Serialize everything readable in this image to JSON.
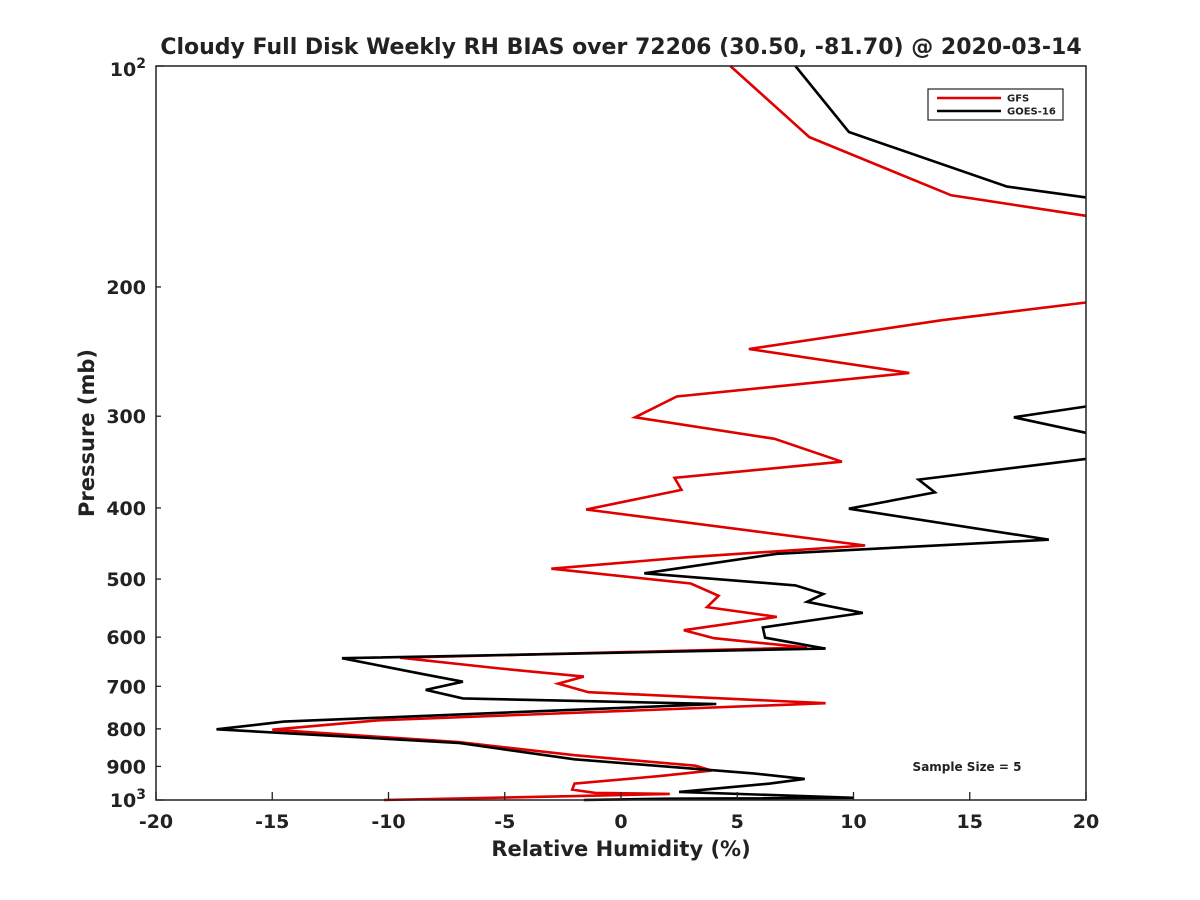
{
  "chart_data": {
    "type": "line",
    "title": "Cloudy Full Disk Weekly RH BIAS over 72206 (30.50, -81.70) @ 2020-03-14",
    "xlabel": "Relative Humidity (%)",
    "ylabel": "Pressure (mb)",
    "xlim": [
      -20,
      20
    ],
    "ylim": [
      100,
      1000
    ],
    "yscale": "log",
    "y_reversed": true,
    "xticks": [
      -20,
      -15,
      -10,
      -5,
      0,
      5,
      10,
      15,
      20
    ],
    "xtick_labels": [
      "-20",
      "-15",
      "-10",
      "-5",
      "0",
      "5",
      "10",
      "15",
      "20"
    ],
    "ytick_labels": {
      "top_base": "10",
      "top_exp": "2",
      "bottom_base": "10",
      "bottom_exp": "3",
      "mid": [
        {
          "p": 200,
          "label": "200"
        },
        {
          "p": 300,
          "label": "300"
        },
        {
          "p": 400,
          "label": "400"
        },
        {
          "p": 500,
          "label": "500"
        },
        {
          "p": 600,
          "label": "600"
        },
        {
          "p": 700,
          "label": "700"
        },
        {
          "p": 800,
          "label": "800"
        },
        {
          "p": 900,
          "label": "900"
        }
      ]
    },
    "legend_position": "top-right",
    "annotation": "Sample Size = 5",
    "series": [
      {
        "name": "GFS",
        "color": "#e00000",
        "points": [
          [
            4.7,
            100
          ],
          [
            8.1,
            125
          ],
          [
            14.2,
            150
          ],
          [
            20,
            160
          ],
          null,
          [
            20,
            210
          ],
          [
            13.8,
            222
          ],
          [
            5.5,
            243
          ],
          [
            12.4,
            262
          ],
          [
            2.4,
            282
          ],
          [
            0.6,
            301
          ],
          [
            6.6,
            322
          ],
          [
            9.5,
            346
          ],
          [
            2.3,
            364
          ],
          [
            2.6,
            378
          ],
          [
            -1.5,
            402
          ],
          [
            10.5,
            450
          ],
          [
            2.8,
            467
          ],
          [
            -3.0,
            484
          ],
          [
            3.0,
            507
          ],
          [
            4.2,
            527
          ],
          [
            3.7,
            546
          ],
          [
            6.7,
            563
          ],
          [
            2.7,
            587
          ],
          [
            4.0,
            602
          ],
          [
            8.0,
            620
          ],
          [
            -9.5,
            640
          ],
          [
            -5.2,
            662
          ],
          [
            -1.6,
            679
          ],
          [
            -2.7,
            694
          ],
          [
            -1.4,
            713
          ],
          [
            8.8,
            738
          ],
          [
            -10.5,
            779
          ],
          [
            -15.0,
            802
          ],
          [
            -7.0,
            834
          ],
          [
            -2.0,
            869
          ],
          [
            3.2,
            898
          ],
          [
            3.9,
            912
          ],
          [
            1.6,
            928
          ],
          [
            -2.0,
            950
          ],
          [
            -2.1,
            968
          ],
          [
            -1.1,
            978
          ],
          [
            2.1,
            981
          ],
          [
            -2.2,
            988
          ],
          [
            -10.2,
            1000
          ]
        ]
      },
      {
        "name": "GOES-16",
        "color": "#000000",
        "points": [
          [
            7.5,
            100
          ],
          [
            9.8,
            123
          ],
          [
            16.6,
            146
          ],
          [
            20,
            151
          ],
          null,
          [
            20,
            291
          ],
          [
            16.9,
            301
          ],
          [
            20,
            316
          ],
          null,
          [
            20,
            343
          ],
          [
            12.8,
            366
          ],
          [
            13.5,
            381
          ],
          [
            9.8,
            401
          ],
          [
            18.4,
            442
          ],
          [
            6.7,
            462
          ],
          [
            1.0,
            491
          ],
          [
            7.5,
            510
          ],
          [
            8.7,
            524
          ],
          [
            8.0,
            537
          ],
          [
            10.4,
            556
          ],
          [
            6.1,
            582
          ],
          [
            6.2,
            601
          ],
          [
            8.8,
            622
          ],
          [
            -12.0,
            641
          ],
          [
            -8.5,
            674
          ],
          [
            -6.8,
            690
          ],
          [
            -8.4,
            708
          ],
          [
            -6.8,
            727
          ],
          [
            4.1,
            740
          ],
          [
            -14.5,
            782
          ],
          [
            -17.4,
            801
          ],
          [
            -7.0,
            836
          ],
          [
            -2.0,
            880
          ],
          [
            5.7,
            920
          ],
          [
            7.9,
            936
          ],
          [
            6.4,
            950
          ],
          [
            2.5,
            975
          ],
          [
            10.0,
            993
          ],
          [
            2.1,
            996
          ],
          [
            -1.6,
            1000
          ]
        ]
      }
    ]
  }
}
